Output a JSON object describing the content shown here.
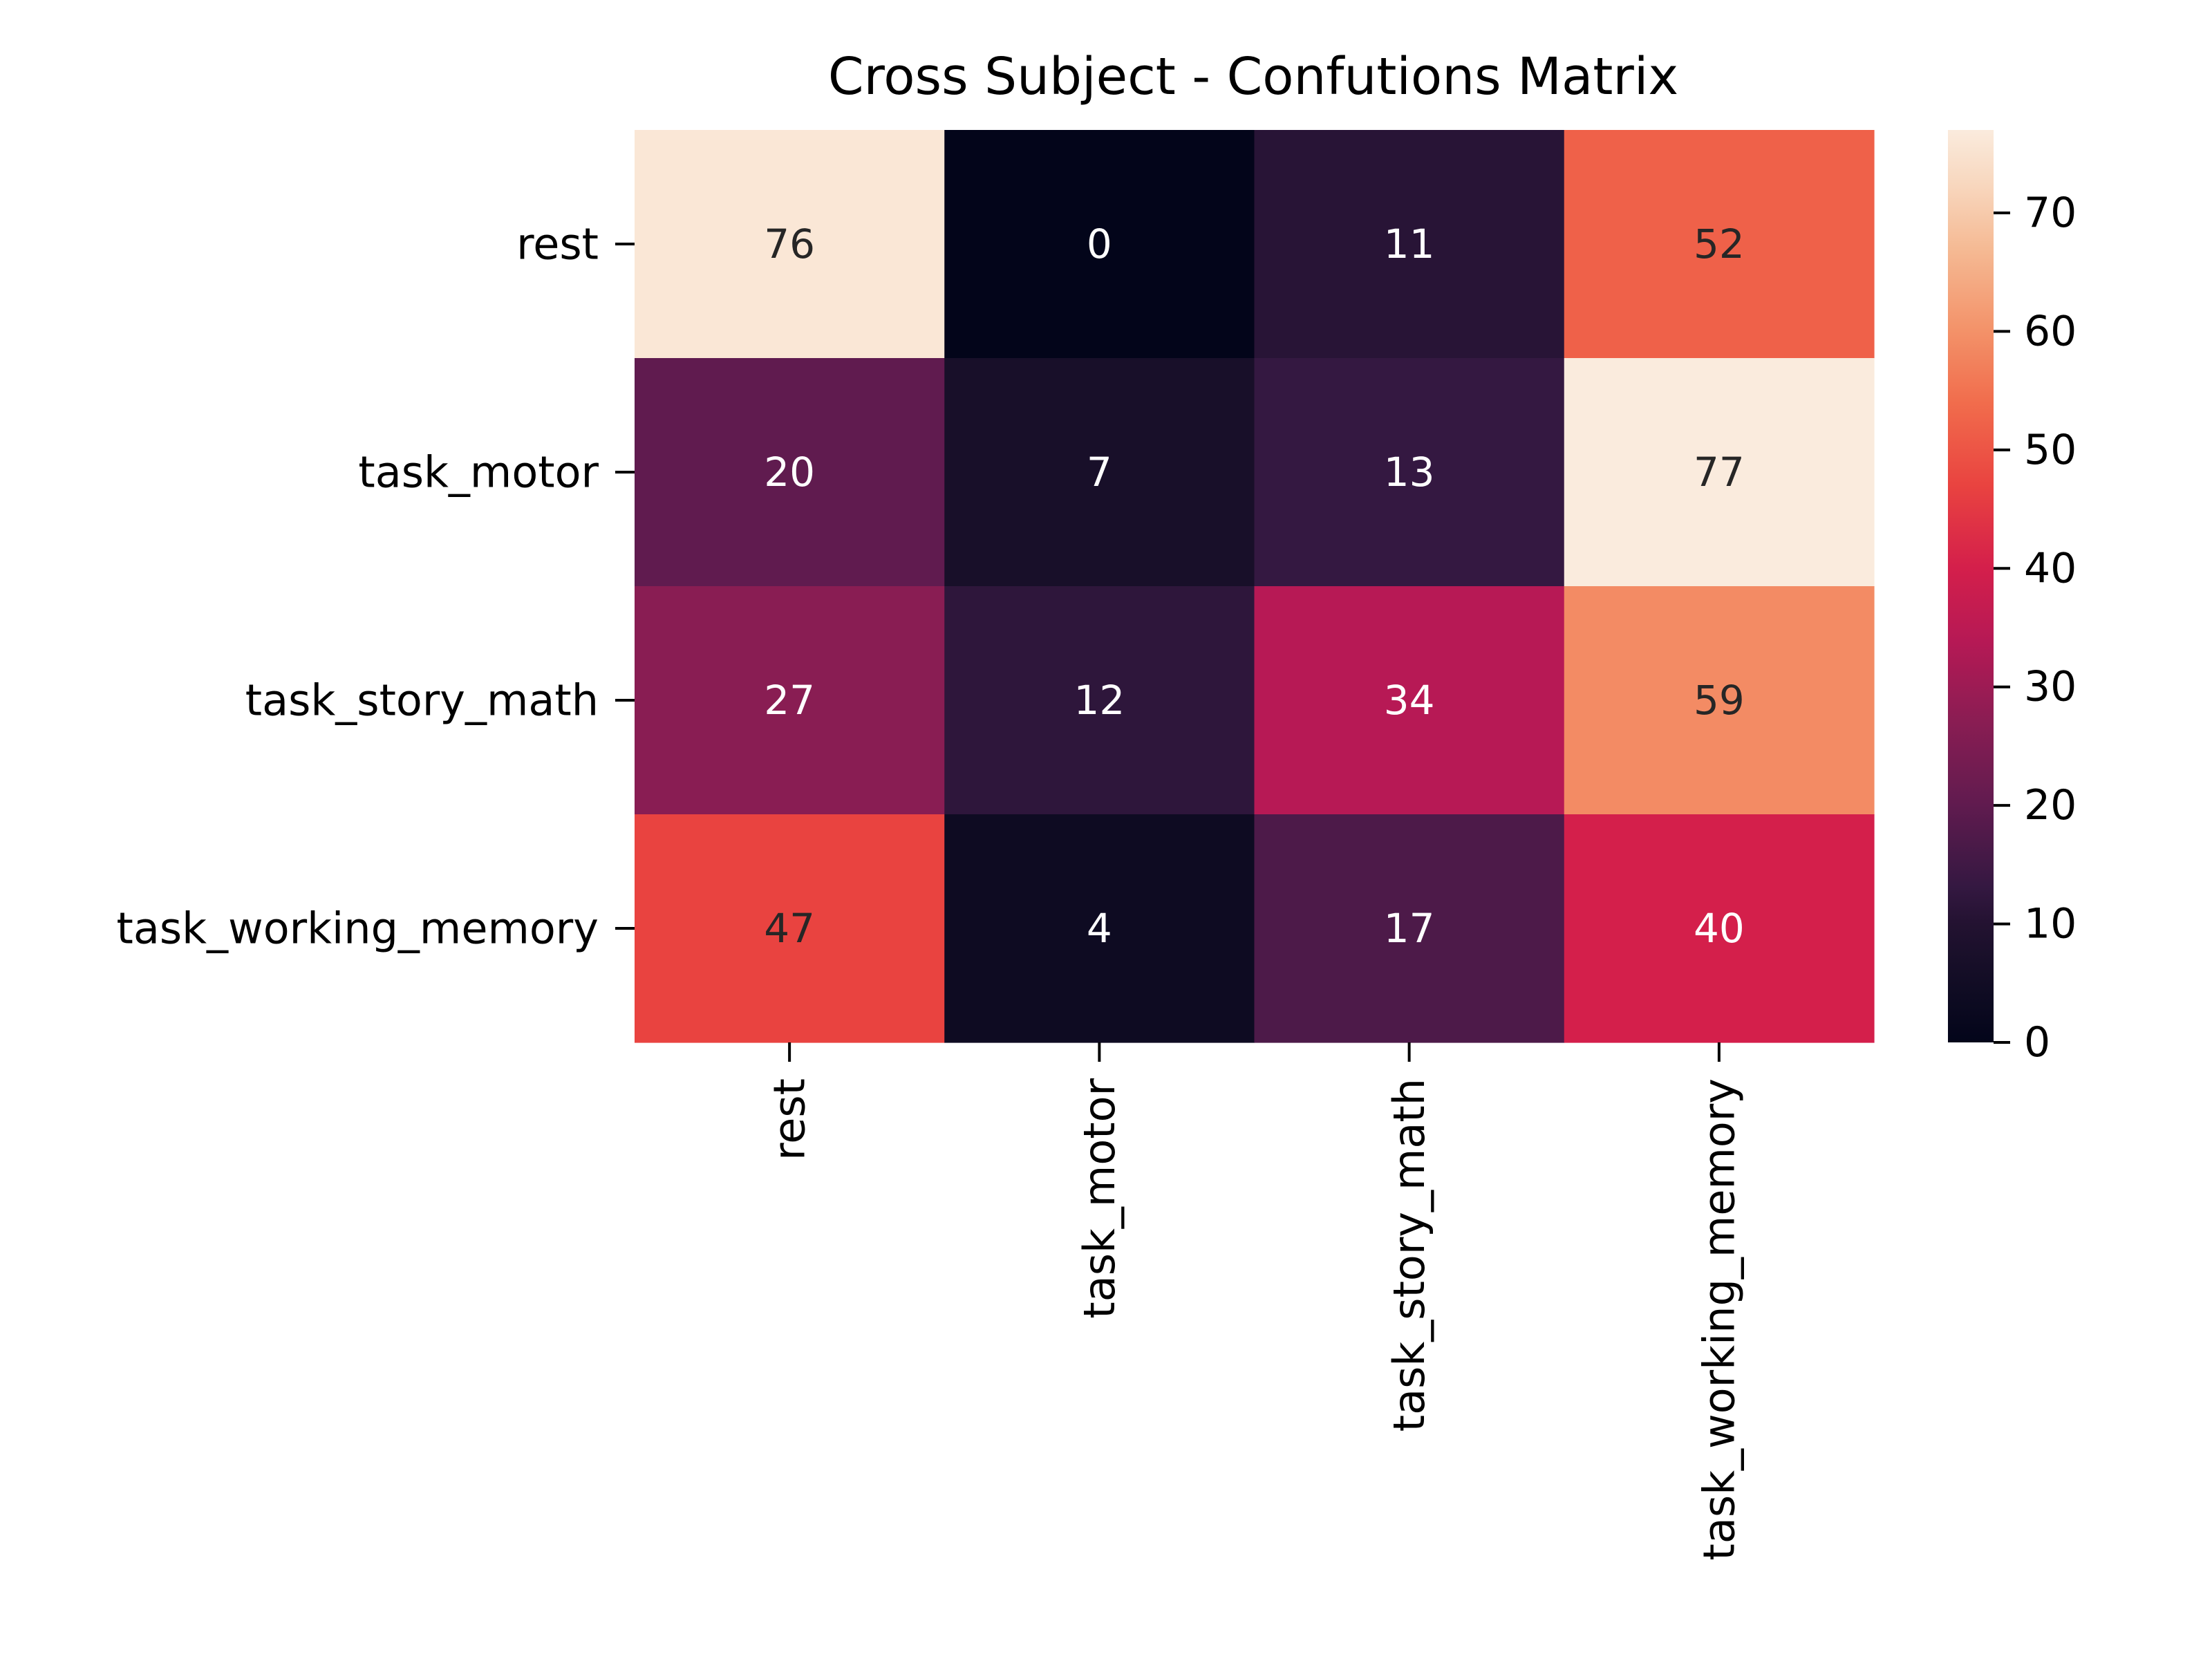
{
  "chart_data": {
    "type": "heatmap",
    "title": "Cross Subject - Confutions Matrix",
    "xlabel": "",
    "ylabel": "",
    "row_labels": [
      "rest",
      "task_motor",
      "task_story_math",
      "task_working_memory"
    ],
    "col_labels": [
      "rest",
      "task_motor",
      "task_story_math",
      "task_working_memory"
    ],
    "values": [
      [
        76,
        0,
        11,
        52
      ],
      [
        20,
        7,
        13,
        77
      ],
      [
        27,
        12,
        34,
        59
      ],
      [
        47,
        4,
        17,
        40
      ]
    ],
    "value_range": [
      0,
      77
    ],
    "colormap": "rocket",
    "colorbar": {
      "ticks": [
        0,
        10,
        20,
        30,
        40,
        50,
        60,
        70
      ],
      "tick_labels": [
        "0",
        "10",
        "20",
        "30",
        "40",
        "50",
        "60",
        "70"
      ]
    },
    "grid": false,
    "annotations": true
  },
  "colors": {
    "background": "#ffffff",
    "text": "#000000",
    "annotation_dark_text": "#262626",
    "annotation_light_text": "#ffffff"
  }
}
